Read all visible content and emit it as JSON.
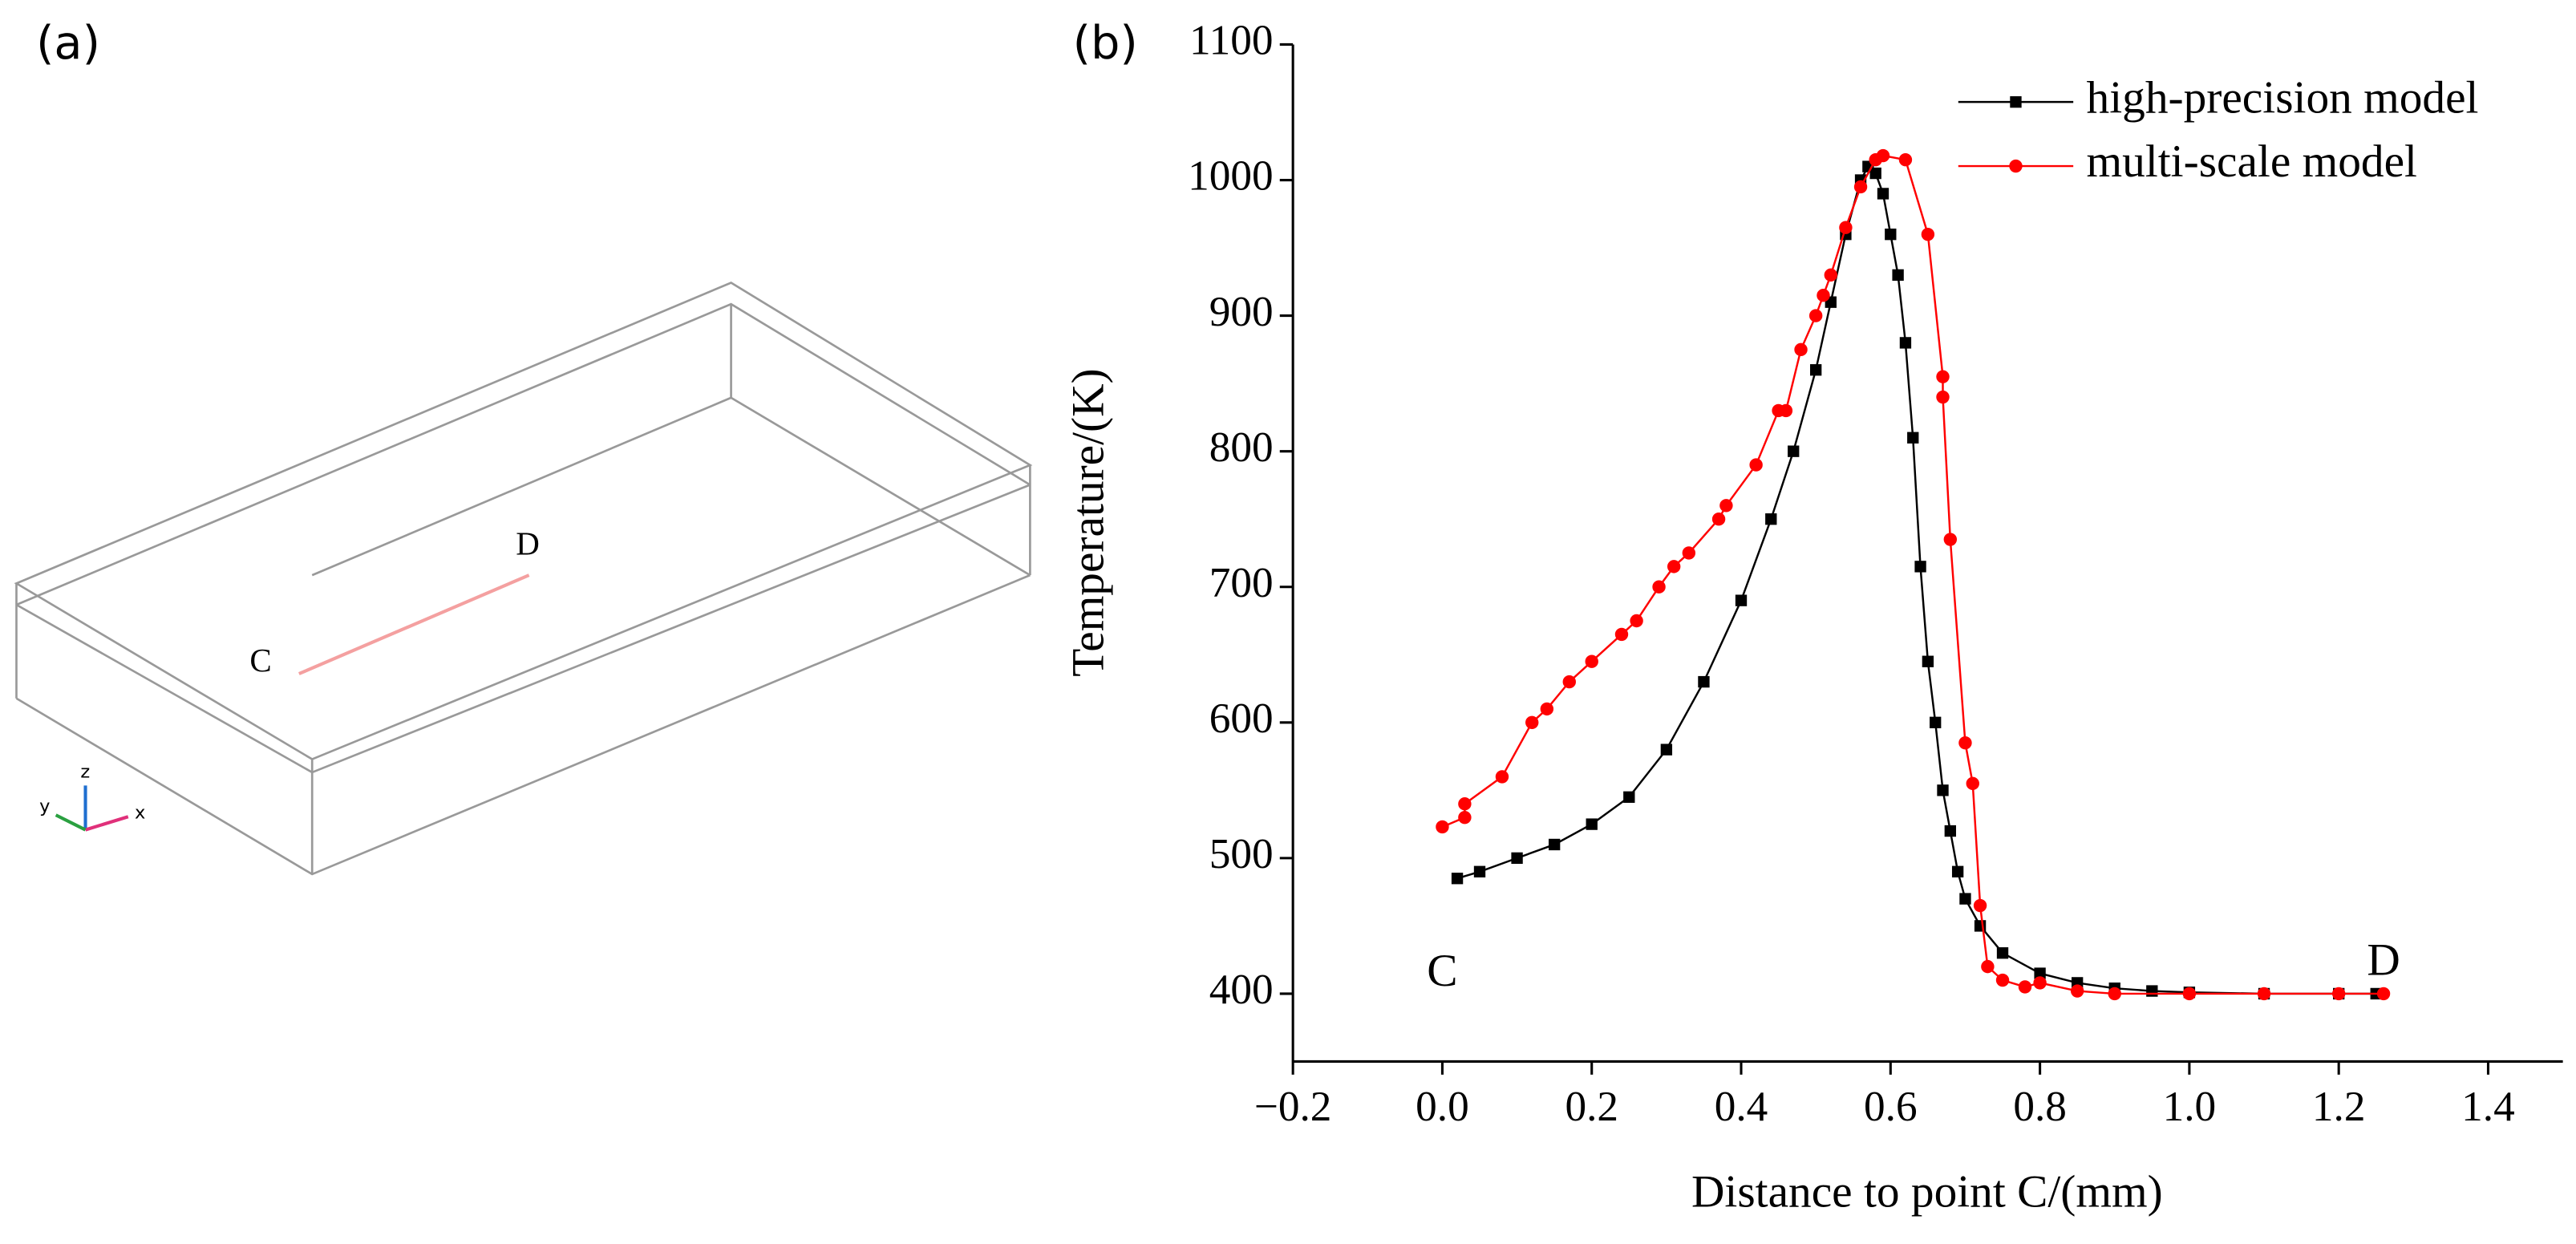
{
  "panel_a": {
    "label": "(a)",
    "point_labels": [
      "C",
      "D"
    ],
    "axis_labels": [
      "x",
      "y",
      "z"
    ]
  },
  "chart_data": {
    "type": "line",
    "panel_label": "(b)",
    "x_label": "Distance to point C/(mm)",
    "y_label": "Temperature/(K)",
    "xlim": [
      -0.2,
      1.5
    ],
    "ylim": [
      350,
      1100
    ],
    "xticks": [
      {
        "value": -0.2,
        "label": "−0.2"
      },
      {
        "value": 0,
        "label": "0.0"
      },
      0.2,
      0.4,
      0.6,
      0.8,
      {
        "value": 1,
        "label": "1.0"
      },
      1.2,
      1.4
    ],
    "yticks": [
      400,
      500,
      600,
      700,
      800,
      900,
      1000,
      1100
    ],
    "legend": "top-right",
    "annotations": [
      {
        "text": "C",
        "x": 0.0,
        "y": 462
      },
      {
        "text": "D",
        "x": 1.26,
        "y": 470
      }
    ],
    "series": [
      {
        "name": "high-precision model",
        "color": "#000000",
        "marker": "square",
        "x": [
          0.02,
          0.05,
          0.1,
          0.15,
          0.2,
          0.25,
          0.3,
          0.35,
          0.4,
          0.44,
          0.47,
          0.5,
          0.52,
          0.54,
          0.56,
          0.57,
          0.58,
          0.59,
          0.6,
          0.61,
          0.62,
          0.63,
          0.64,
          0.65,
          0.66,
          0.67,
          0.68,
          0.69,
          0.7,
          0.72,
          0.75,
          0.8,
          0.85,
          0.9,
          0.95,
          1.0,
          1.1,
          1.2,
          1.25
        ],
        "values": [
          485,
          490,
          500,
          510,
          525,
          545,
          580,
          630,
          690,
          750,
          800,
          860,
          910,
          960,
          1000,
          1010,
          1005,
          990,
          960,
          930,
          880,
          810,
          715,
          645,
          600,
          550,
          520,
          490,
          470,
          450,
          430,
          415,
          408,
          404,
          402,
          401,
          400,
          400,
          400
        ]
      },
      {
        "name": "multi-scale model",
        "color": "#ff0000",
        "marker": "circle",
        "x": [
          0.0,
          0.03,
          0.03,
          0.08,
          0.12,
          0.14,
          0.17,
          0.2,
          0.24,
          0.26,
          0.29,
          0.31,
          0.33,
          0.37,
          0.38,
          0.42,
          0.45,
          0.46,
          0.48,
          0.5,
          0.51,
          0.52,
          0.54,
          0.56,
          0.58,
          0.59,
          0.62,
          0.65,
          0.67,
          0.67,
          0.68,
          0.7,
          0.71,
          0.72,
          0.73,
          0.75,
          0.78,
          0.8,
          0.85,
          0.9,
          1.0,
          1.1,
          1.2,
          1.26
        ],
        "values": [
          523,
          530,
          540,
          560,
          600,
          610,
          630,
          645,
          665,
          675,
          700,
          715,
          725,
          750,
          760,
          790,
          830,
          830,
          875,
          900,
          915,
          930,
          965,
          995,
          1015,
          1018,
          1015,
          960,
          855,
          840,
          735,
          585,
          555,
          465,
          420,
          410,
          405,
          408,
          402,
          400,
          400,
          400,
          400,
          400
        ]
      }
    ]
  }
}
